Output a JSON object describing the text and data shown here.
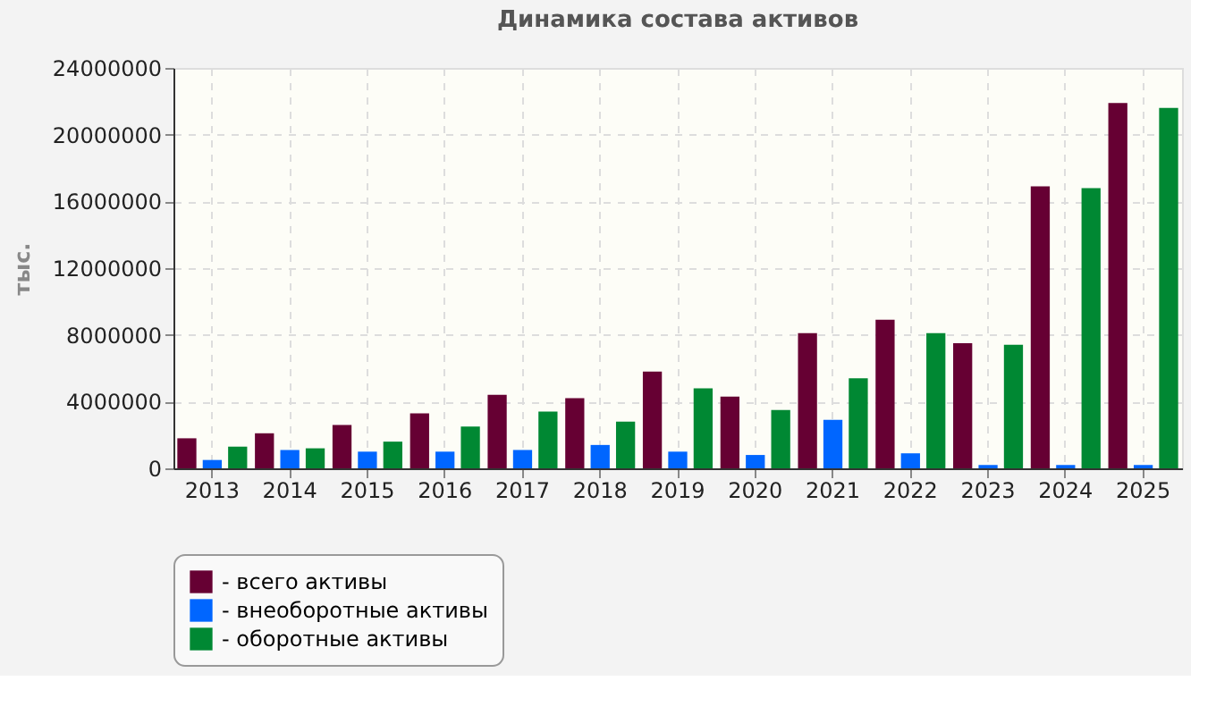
{
  "chart_data": {
    "type": "bar",
    "title": "Динамика состава активов",
    "ylabel": "тыс.",
    "categories": [
      "2013",
      "2014",
      "2015",
      "2016",
      "2017",
      "2018",
      "2019",
      "2020",
      "2021",
      "2022",
      "2023",
      "2024",
      "2025"
    ],
    "series": [
      {
        "name": "- всего активы",
        "color": "#660033",
        "values": [
          1800000,
          2100000,
          2600000,
          3300000,
          4400000,
          4200000,
          5800000,
          4300000,
          8100000,
          8900000,
          7500000,
          16900000,
          21900000
        ]
      },
      {
        "name": "- внеоборотные активы",
        "color": "#0066ff",
        "values": [
          500000,
          1100000,
          1000000,
          1000000,
          1100000,
          1400000,
          1000000,
          800000,
          2900000,
          900000,
          200000,
          200000,
          200000
        ]
      },
      {
        "name": "- оборотные активы",
        "color": "#008833",
        "values": [
          1300000,
          1200000,
          1600000,
          2500000,
          3400000,
          2800000,
          4800000,
          3500000,
          5400000,
          8100000,
          7400000,
          16800000,
          21600000
        ]
      }
    ],
    "ylim": [
      0,
      24000000
    ],
    "yticks": [
      0,
      4000000,
      8000000,
      12000000,
      16000000,
      20000000,
      24000000
    ],
    "grid": true,
    "legend": "bottom"
  }
}
